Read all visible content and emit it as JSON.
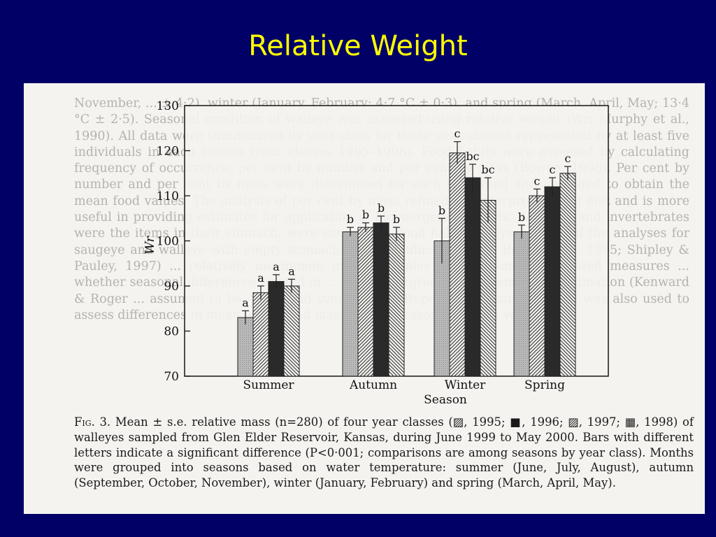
{
  "slide": {
    "title": "Relative Weight"
  },
  "figure": {
    "caption_label": "Fig. 3.",
    "caption_text": "Mean ± s.e. relative mass (n=280) of four year classes (▨, 1995; ■, 1996; ▨, 1997; ▦, 1998) of walleyes sampled from Glen Elder Reservoir, Kansas, during June 1999 to May 2000. Bars with different letters indicate a significant difference (P<0·001; comparisons are among seasons by year class). Months were grouped into seasons based on water temperature: summer (June, July, August), autumn (September, October, November), winter (January, February) and spring (March, April, May).",
    "background_text": "November, ... ± 4·2), winter (January, February; 4·7 °C ± 0·3), and spring (March, April, May; 13·4 °C ± 2·5). Seasonal condition of walleye was assessed using relative weight (Wr; Murphy et al., 1990). All data were summarized by year class for those year classes represented by at least five individuals in each season (year classes 1995–1998). Food habits were assessed by calculating frequency of occurrence, per cent by number and per cent by mass (Bowen, 1996). Per cent by number and per cent by mass were determined for each individual and averaged to obtain the mean food values. The analysis of per cent by mass refined the interpretation of diet and is more useful in providing estimates for application in bioenergetics models. Both fish and invertebrates were the items in their stomach, were used in the food habits analyses. Most of the analyses for saugeye and walleye with empty stomachs were conducted with... Bryan et al., 1995; Shipley & Pauley, 1997) ... relatively uncommon in the samples ... Mixed-model repeated measures ... whether seasonal differences existed in ... and Wr. Degrees of freedom ... approximation (Kenward & Roger ... assumed to be compound symmetric ... Repeated-measures ANOVA was also used to assess differences in mean length and mass among seasons for each year ..."
  },
  "chart_data": {
    "type": "bar",
    "ylabel": "Wr",
    "xlabel": "Season",
    "ylim": [
      70,
      130
    ],
    "yticks": [
      70,
      80,
      90,
      100,
      110,
      120,
      130
    ],
    "categories": [
      "Summer",
      "Autumn",
      "Winter",
      "Spring"
    ],
    "series": [
      {
        "name": "1995",
        "pattern": "hatch-right",
        "values": [
          83,
          102,
          100,
          102
        ],
        "errors": [
          1.5,
          1.0,
          5.0,
          1.5
        ],
        "letters": [
          "a",
          "b",
          "b",
          "b"
        ]
      },
      {
        "name": "1996",
        "pattern": "solid-light",
        "values": [
          88.5,
          103,
          119.5,
          110
        ],
        "errors": [
          1.5,
          1.0,
          2.5,
          1.5
        ],
        "letters": [
          "a",
          "b",
          "c",
          "c"
        ]
      },
      {
        "name": "1997",
        "pattern": "solid-dark",
        "values": [
          91,
          104,
          114,
          112
        ],
        "errors": [
          1.5,
          1.5,
          3.0,
          2.0
        ],
        "letters": [
          "a",
          "b",
          "bc",
          "c"
        ]
      },
      {
        "name": "1998",
        "pattern": "hatch-left",
        "values": [
          90,
          101.5,
          109,
          115
        ],
        "errors": [
          1.5,
          1.5,
          5.0,
          1.5
        ],
        "letters": [
          "a",
          "b",
          "bc",
          "c"
        ]
      }
    ],
    "colors": {
      "solid_light": "#f2f2f2",
      "solid_dark": "#2a2a2a",
      "hatch_stroke": "#333333",
      "frame": "#222222"
    }
  }
}
